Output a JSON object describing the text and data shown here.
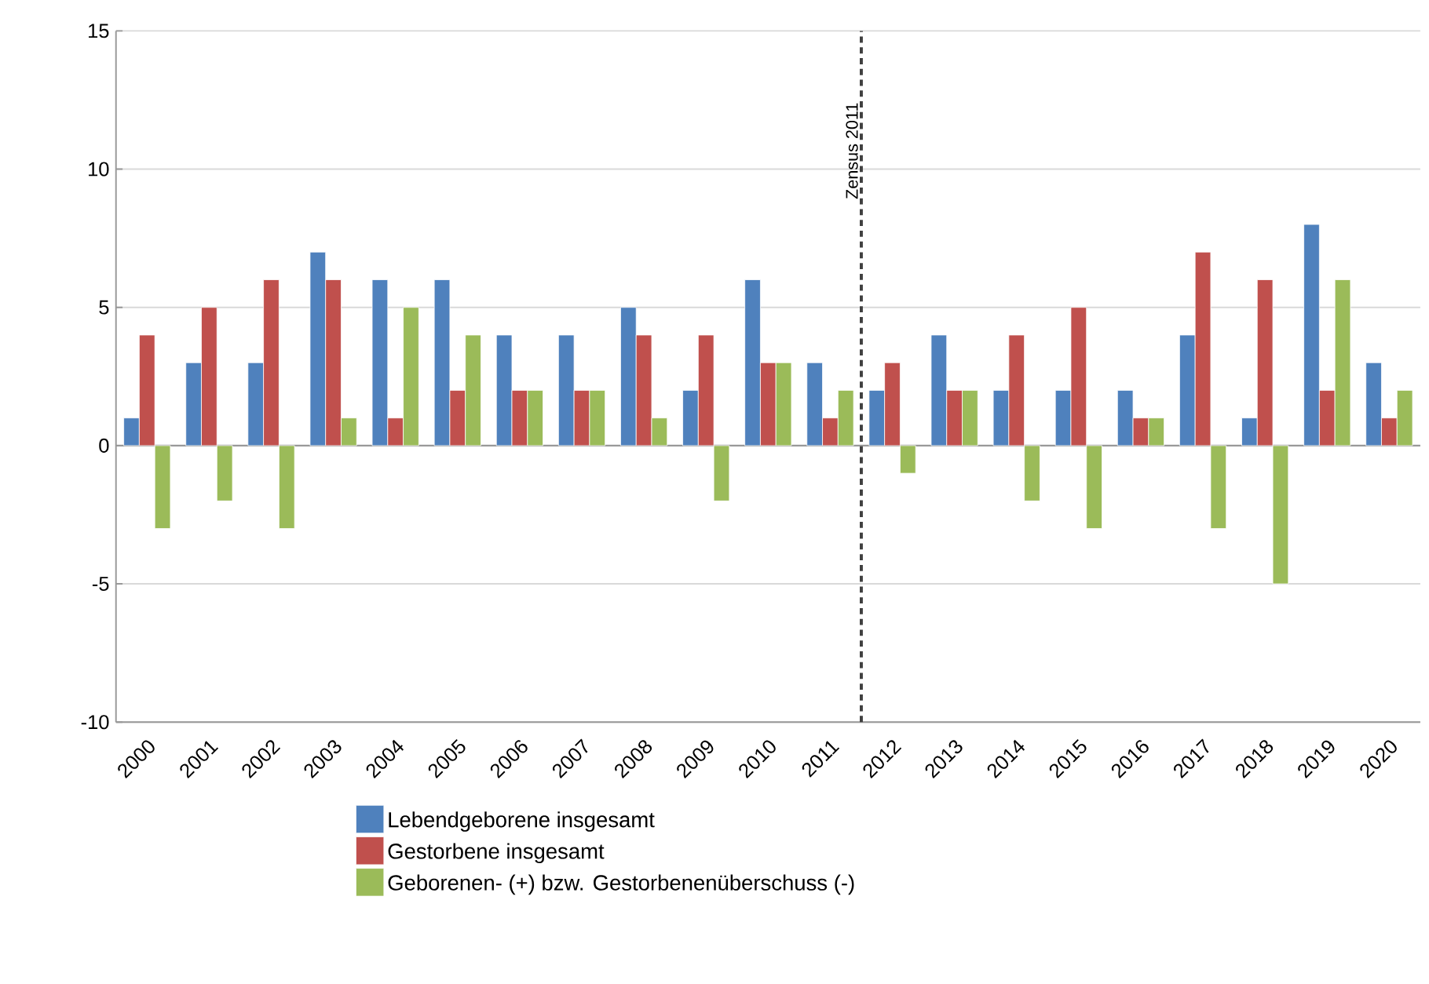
{
  "chart_data": {
    "type": "bar",
    "x": [
      2000,
      2001,
      2002,
      2003,
      2004,
      2005,
      2006,
      2007,
      2008,
      2009,
      2010,
      2011,
      2012,
      2013,
      2014,
      2015,
      2016,
      2017,
      2018,
      2019,
      2020
    ],
    "xlim": [
      1999.5,
      2020.5
    ],
    "xticks": [
      2000,
      2001,
      2002,
      2003,
      2004,
      2005,
      2006,
      2007,
      2008,
      2009,
      2010,
      2011,
      2012,
      2013,
      2014,
      2015,
      2016,
      2017,
      2018,
      2019,
      2020
    ],
    "series": [
      {
        "name": "Lebendgeborene insgesamt",
        "color": "#4f81bd",
        "values": [
          1,
          3,
          3,
          7,
          6,
          6,
          4,
          4,
          5,
          2,
          6,
          3,
          2,
          4,
          2,
          2,
          2,
          4,
          1,
          8,
          3
        ]
      },
      {
        "name": "Gestorbene insgesamt",
        "color": "#c0504d",
        "values": [
          4,
          5,
          6,
          6,
          1,
          2,
          2,
          2,
          4,
          4,
          3,
          1,
          3,
          2,
          4,
          5,
          1,
          7,
          6,
          2,
          1
        ]
      },
      {
        "name": "Geborenen- (+) bzw. Gestorbenenüberschuss (-)",
        "color": "#9bbb59",
        "values": [
          -3,
          -2,
          -3,
          1,
          5,
          4,
          2,
          2,
          1,
          -2,
          3,
          2,
          -1,
          2,
          -2,
          -3,
          1,
          -3,
          -5,
          6,
          2
        ]
      }
    ],
    "ylim": [
      -10,
      15
    ],
    "yticks": [
      -10,
      -5,
      0,
      5,
      10,
      15
    ],
    "grid": "y",
    "legend": "bottom",
    "ref_lines": [
      {
        "axis": "x",
        "value": 2011.5,
        "label": "Zensus 2011",
        "color": "#404040",
        "line_style": "dashed"
      }
    ]
  }
}
